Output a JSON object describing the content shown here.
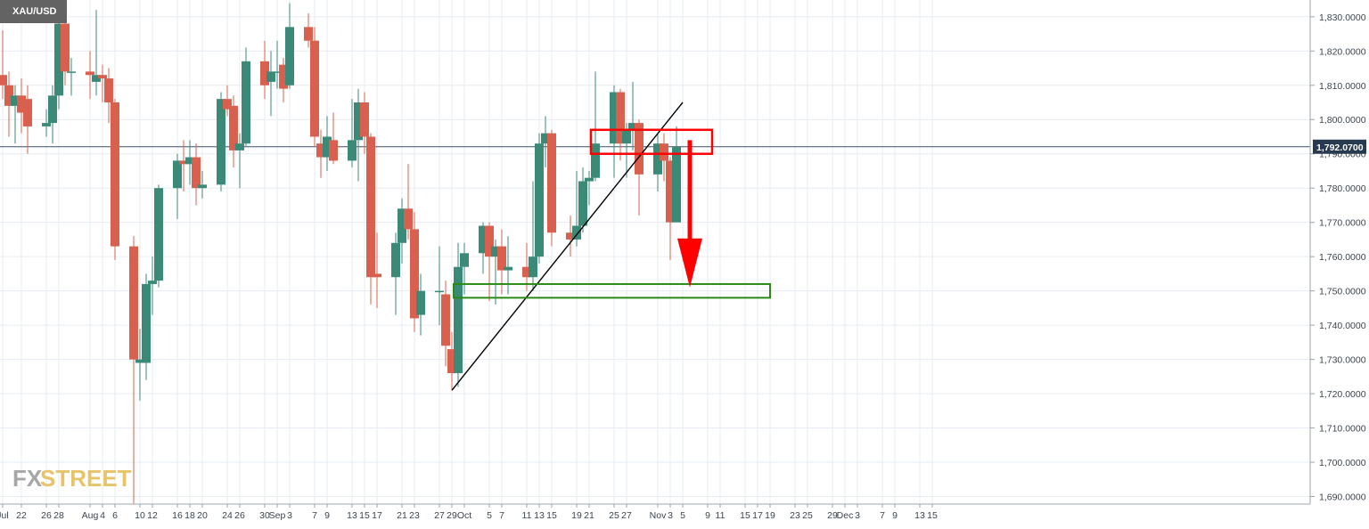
{
  "symbol": "XAU/USD",
  "watermark": {
    "part1": "FX",
    "part2": "STREET"
  },
  "colors": {
    "up": "#3b8a78",
    "down": "#d9604e",
    "grid": "#e6ecf2",
    "axis_text": "#3a4550",
    "current_price_bg": "#283a50",
    "annotation_red": "#ff0000",
    "annotation_green": "#2a8a15",
    "trendline": "#000000"
  },
  "chart_data": {
    "type": "candlestick",
    "title": "XAU/USD",
    "ylim": [
      1688,
      1836
    ],
    "yticks": [
      "1,690.0000",
      "1,700.0000",
      "1,710.0000",
      "1,720.0000",
      "1,730.0000",
      "1,740.0000",
      "1,750.0000",
      "1,760.0000",
      "1,770.0000",
      "1,780.0000",
      "1,790.0000",
      "1,800.0000",
      "1,810.0000",
      "1,820.0000",
      "1,830.0000"
    ],
    "ytick_values": [
      1690,
      1700,
      1710,
      1720,
      1730,
      1740,
      1750,
      1760,
      1770,
      1780,
      1790,
      1800,
      1810,
      1820,
      1830
    ],
    "current_price": 1792.07,
    "current_price_label": "1,792.0700",
    "xticks": [
      {
        "label": "Jul",
        "date": "2021-07-19"
      },
      {
        "label": "22",
        "date": "2021-07-22"
      },
      {
        "label": "26",
        "date": "2021-07-26"
      },
      {
        "label": "28",
        "date": "2021-07-28"
      },
      {
        "label": "Aug",
        "date": "2021-08-02"
      },
      {
        "label": "4",
        "date": "2021-08-04"
      },
      {
        "label": "6",
        "date": "2021-08-06"
      },
      {
        "label": "10",
        "date": "2021-08-10"
      },
      {
        "label": "12",
        "date": "2021-08-12"
      },
      {
        "label": "16",
        "date": "2021-08-16"
      },
      {
        "label": "18",
        "date": "2021-08-18"
      },
      {
        "label": "20",
        "date": "2021-08-20"
      },
      {
        "label": "24",
        "date": "2021-08-24"
      },
      {
        "label": "26",
        "date": "2021-08-26"
      },
      {
        "label": "30",
        "date": "2021-08-30"
      },
      {
        "label": "Sep",
        "date": "2021-09-01"
      },
      {
        "label": "3",
        "date": "2021-09-03"
      },
      {
        "label": "7",
        "date": "2021-09-07"
      },
      {
        "label": "9",
        "date": "2021-09-09"
      },
      {
        "label": "13",
        "date": "2021-09-13"
      },
      {
        "label": "15",
        "date": "2021-09-15"
      },
      {
        "label": "17",
        "date": "2021-09-17"
      },
      {
        "label": "21",
        "date": "2021-09-21"
      },
      {
        "label": "23",
        "date": "2021-09-23"
      },
      {
        "label": "27",
        "date": "2021-09-27"
      },
      {
        "label": "29",
        "date": "2021-09-29"
      },
      {
        "label": "Oct",
        "date": "2021-10-01"
      },
      {
        "label": "5",
        "date": "2021-10-05"
      },
      {
        "label": "7",
        "date": "2021-10-07"
      },
      {
        "label": "11",
        "date": "2021-10-11"
      },
      {
        "label": "13",
        "date": "2021-10-13"
      },
      {
        "label": "15",
        "date": "2021-10-15"
      },
      {
        "label": "19",
        "date": "2021-10-19"
      },
      {
        "label": "21",
        "date": "2021-10-21"
      },
      {
        "label": "25",
        "date": "2021-10-25"
      },
      {
        "label": "27",
        "date": "2021-10-27"
      },
      {
        "label": "Nov",
        "date": "2021-11-01"
      },
      {
        "label": "3",
        "date": "2021-11-03"
      },
      {
        "label": "5",
        "date": "2021-11-05"
      },
      {
        "label": "9",
        "date": "2021-11-09"
      },
      {
        "label": "11",
        "date": "2021-11-11"
      },
      {
        "label": "15",
        "date": "2021-11-15"
      },
      {
        "label": "17",
        "date": "2021-11-17"
      },
      {
        "label": "19",
        "date": "2021-11-19"
      },
      {
        "label": "23",
        "date": "2021-11-23"
      },
      {
        "label": "25",
        "date": "2021-11-25"
      },
      {
        "label": "29",
        "date": "2021-11-29"
      },
      {
        "label": "Dec",
        "date": "2021-12-01"
      },
      {
        "label": "3",
        "date": "2021-12-03"
      },
      {
        "label": "7",
        "date": "2021-12-07"
      },
      {
        "label": "9",
        "date": "2021-12-09"
      },
      {
        "label": "13",
        "date": "2021-12-13"
      },
      {
        "label": "15",
        "date": "2021-12-15"
      }
    ],
    "candles": [
      {
        "date": "2021-07-19",
        "o": 1813,
        "h": 1826,
        "l": 1806,
        "c": 1810
      },
      {
        "date": "2021-07-20",
        "o": 1810,
        "h": 1814,
        "l": 1795,
        "c": 1804
      },
      {
        "date": "2021-07-21",
        "o": 1804,
        "h": 1810,
        "l": 1793,
        "c": 1807
      },
      {
        "date": "2021-07-22",
        "o": 1807,
        "h": 1812,
        "l": 1796,
        "c": 1802
      },
      {
        "date": "2021-07-23",
        "o": 1806,
        "h": 1810,
        "l": 1790,
        "c": 1798
      },
      {
        "date": "2021-07-26",
        "o": 1798,
        "h": 1803,
        "l": 1795,
        "c": 1799
      },
      {
        "date": "2021-07-27",
        "o": 1799,
        "h": 1810,
        "l": 1793,
        "c": 1807
      },
      {
        "date": "2021-07-28",
        "o": 1807,
        "h": 1833,
        "l": 1803,
        "c": 1828
      },
      {
        "date": "2021-07-29",
        "o": 1828,
        "h": 1832,
        "l": 1810,
        "c": 1814
      },
      {
        "date": "2021-07-30",
        "o": 1814,
        "h": 1818,
        "l": 1807,
        "c": 1814
      },
      {
        "date": "2021-08-02",
        "o": 1814,
        "h": 1820,
        "l": 1806,
        "c": 1813
      },
      {
        "date": "2021-08-03",
        "o": 1811,
        "h": 1832,
        "l": 1807,
        "c": 1813
      },
      {
        "date": "2021-08-04",
        "o": 1813,
        "h": 1816,
        "l": 1805,
        "c": 1812
      },
      {
        "date": "2021-08-05",
        "o": 1812,
        "h": 1815,
        "l": 1799,
        "c": 1805
      },
      {
        "date": "2021-08-06",
        "o": 1805,
        "h": 1806,
        "l": 1759,
        "c": 1763
      },
      {
        "date": "2021-08-09",
        "o": 1763,
        "h": 1766,
        "l": 1688,
        "c": 1730
      },
      {
        "date": "2021-08-10",
        "o": 1729,
        "h": 1739,
        "l": 1718,
        "c": 1730
      },
      {
        "date": "2021-08-11",
        "o": 1729,
        "h": 1755,
        "l": 1724,
        "c": 1752
      },
      {
        "date": "2021-08-12",
        "o": 1752,
        "h": 1760,
        "l": 1743,
        "c": 1753
      },
      {
        "date": "2021-08-13",
        "o": 1753,
        "h": 1781,
        "l": 1751,
        "c": 1780
      },
      {
        "date": "2021-08-16",
        "o": 1780,
        "h": 1790,
        "l": 1771,
        "c": 1788
      },
      {
        "date": "2021-08-17",
        "o": 1788,
        "h": 1794,
        "l": 1779,
        "c": 1787
      },
      {
        "date": "2021-08-18",
        "o": 1787,
        "h": 1794,
        "l": 1781,
        "c": 1789
      },
      {
        "date": "2021-08-19",
        "o": 1789,
        "h": 1793,
        "l": 1775,
        "c": 1780
      },
      {
        "date": "2021-08-20",
        "o": 1780,
        "h": 1785,
        "l": 1777,
        "c": 1781
      },
      {
        "date": "2021-08-23",
        "o": 1781,
        "h": 1808,
        "l": 1779,
        "c": 1806
      },
      {
        "date": "2021-08-24",
        "o": 1806,
        "h": 1810,
        "l": 1801,
        "c": 1803
      },
      {
        "date": "2021-08-25",
        "o": 1804,
        "h": 1807,
        "l": 1786,
        "c": 1791
      },
      {
        "date": "2021-08-26",
        "o": 1791,
        "h": 1796,
        "l": 1780,
        "c": 1793
      },
      {
        "date": "2021-08-27",
        "o": 1793,
        "h": 1821,
        "l": 1792,
        "c": 1817
      },
      {
        "date": "2021-08-30",
        "o": 1817,
        "h": 1823,
        "l": 1806,
        "c": 1810
      },
      {
        "date": "2021-08-31",
        "o": 1811,
        "h": 1820,
        "l": 1801,
        "c": 1814
      },
      {
        "date": "2021-09-01",
        "o": 1814,
        "h": 1823,
        "l": 1809,
        "c": 1814
      },
      {
        "date": "2021-09-02",
        "o": 1816,
        "h": 1818,
        "l": 1805,
        "c": 1809
      },
      {
        "date": "2021-09-03",
        "o": 1810,
        "h": 1834,
        "l": 1809,
        "c": 1827
      },
      {
        "date": "2021-09-06",
        "o": 1827,
        "h": 1831,
        "l": 1821,
        "c": 1823
      },
      {
        "date": "2021-09-07",
        "o": 1823,
        "h": 1827,
        "l": 1792,
        "c": 1795
      },
      {
        "date": "2021-09-08",
        "o": 1793,
        "h": 1797,
        "l": 1783,
        "c": 1789
      },
      {
        "date": "2021-09-09",
        "o": 1789,
        "h": 1801,
        "l": 1785,
        "c": 1795
      },
      {
        "date": "2021-09-10",
        "o": 1794,
        "h": 1802,
        "l": 1787,
        "c": 1788
      },
      {
        "date": "2021-09-13",
        "o": 1788,
        "h": 1806,
        "l": 1786,
        "c": 1794
      },
      {
        "date": "2021-09-14",
        "o": 1794,
        "h": 1809,
        "l": 1782,
        "c": 1805
      },
      {
        "date": "2021-09-15",
        "o": 1805,
        "h": 1808,
        "l": 1790,
        "c": 1795
      },
      {
        "date": "2021-09-16",
        "o": 1795,
        "h": 1796,
        "l": 1746,
        "c": 1754
      },
      {
        "date": "2021-09-17",
        "o": 1755,
        "h": 1767,
        "l": 1745,
        "c": 1754
      },
      {
        "date": "2021-09-20",
        "o": 1754,
        "h": 1767,
        "l": 1743,
        "c": 1764
      },
      {
        "date": "2021-09-21",
        "o": 1764,
        "h": 1777,
        "l": 1758,
        "c": 1774
      },
      {
        "date": "2021-09-22",
        "o": 1774,
        "h": 1787,
        "l": 1765,
        "c": 1768
      },
      {
        "date": "2021-09-23",
        "o": 1768,
        "h": 1773,
        "l": 1738,
        "c": 1742
      },
      {
        "date": "2021-09-24",
        "o": 1743,
        "h": 1755,
        "l": 1737,
        "c": 1750
      },
      {
        "date": "2021-09-27",
        "o": 1750,
        "h": 1763,
        "l": 1740,
        "c": 1750
      },
      {
        "date": "2021-09-28",
        "o": 1749,
        "h": 1753,
        "l": 1728,
        "c": 1734
      },
      {
        "date": "2021-09-29",
        "o": 1733,
        "h": 1738,
        "l": 1721,
        "c": 1726
      },
      {
        "date": "2021-09-30",
        "o": 1726,
        "h": 1764,
        "l": 1722,
        "c": 1757
      },
      {
        "date": "2021-10-01",
        "o": 1757,
        "h": 1764,
        "l": 1749,
        "c": 1761
      },
      {
        "date": "2021-10-04",
        "o": 1761,
        "h": 1770,
        "l": 1755,
        "c": 1769
      },
      {
        "date": "2021-10-05",
        "o": 1769,
        "h": 1770,
        "l": 1747,
        "c": 1760
      },
      {
        "date": "2021-10-06",
        "o": 1760,
        "h": 1765,
        "l": 1746,
        "c": 1763
      },
      {
        "date": "2021-10-07",
        "o": 1763,
        "h": 1768,
        "l": 1749,
        "c": 1756
      },
      {
        "date": "2021-10-08",
        "o": 1756,
        "h": 1766,
        "l": 1749,
        "c": 1757
      },
      {
        "date": "2021-10-11",
        "o": 1757,
        "h": 1764,
        "l": 1750,
        "c": 1754
      },
      {
        "date": "2021-10-12",
        "o": 1754,
        "h": 1782,
        "l": 1750,
        "c": 1760
      },
      {
        "date": "2021-10-13",
        "o": 1760,
        "h": 1796,
        "l": 1758,
        "c": 1793
      },
      {
        "date": "2021-10-14",
        "o": 1793,
        "h": 1801,
        "l": 1786,
        "c": 1796
      },
      {
        "date": "2021-10-15",
        "o": 1796,
        "h": 1797,
        "l": 1763,
        "c": 1767
      },
      {
        "date": "2021-10-18",
        "o": 1767,
        "h": 1772,
        "l": 1760,
        "c": 1765
      },
      {
        "date": "2021-10-19",
        "o": 1765,
        "h": 1785,
        "l": 1763,
        "c": 1769
      },
      {
        "date": "2021-10-20",
        "o": 1769,
        "h": 1786,
        "l": 1767,
        "c": 1782
      },
      {
        "date": "2021-10-21",
        "o": 1782,
        "h": 1785,
        "l": 1775,
        "c": 1783
      },
      {
        "date": "2021-10-22",
        "o": 1783,
        "h": 1814,
        "l": 1782,
        "c": 1793
      },
      {
        "date": "2021-10-25",
        "o": 1793,
        "h": 1810,
        "l": 1783,
        "c": 1808
      },
      {
        "date": "2021-10-26",
        "o": 1808,
        "h": 1809,
        "l": 1788,
        "c": 1793
      },
      {
        "date": "2021-10-27",
        "o": 1793,
        "h": 1799,
        "l": 1783,
        "c": 1797
      },
      {
        "date": "2021-10-28",
        "o": 1797,
        "h": 1811,
        "l": 1791,
        "c": 1799
      },
      {
        "date": "2021-10-29",
        "o": 1799,
        "h": 1800,
        "l": 1772,
        "c": 1784
      },
      {
        "date": "2021-11-01",
        "o": 1784,
        "h": 1796,
        "l": 1779,
        "c": 1793
      },
      {
        "date": "2021-11-02",
        "o": 1793,
        "h": 1796,
        "l": 1782,
        "c": 1788
      },
      {
        "date": "2021-11-03",
        "o": 1788,
        "h": 1789,
        "l": 1759,
        "c": 1770
      },
      {
        "date": "2021-11-04",
        "o": 1770,
        "h": 1798,
        "l": 1770,
        "c": 1792
      }
    ]
  },
  "annotations": {
    "trendline": {
      "from": {
        "date": "2021-09-29",
        "price": 1721
      },
      "to": {
        "date": "2021-11-05",
        "price": 1805
      }
    },
    "resistance_box": {
      "from_date": "2021-10-22",
      "to_date": "2021-11-09",
      "low": 1790,
      "high": 1797
    },
    "support_box": {
      "from_date": "2021-09-30",
      "to_date": "2021-11-19",
      "low": 1748,
      "high": 1752
    },
    "down_arrow": {
      "date": "2021-11-06",
      "from_price": 1794,
      "to_price": 1751
    }
  }
}
